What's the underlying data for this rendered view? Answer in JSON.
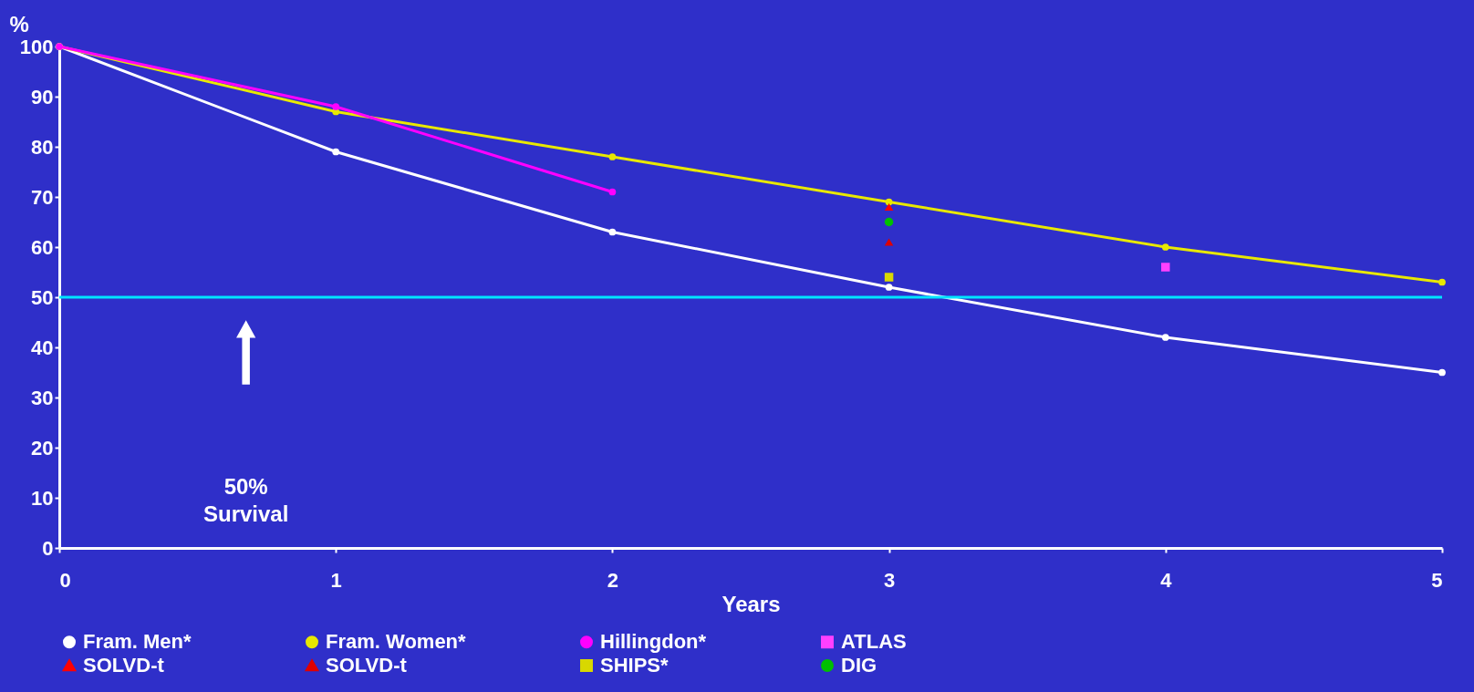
{
  "chart_data": {
    "type": "line",
    "xlabel": "Years",
    "ylabel": "%",
    "xlim": [
      0,
      5
    ],
    "xticks": [
      0,
      1,
      2,
      3,
      4,
      5
    ],
    "ylim": [
      0,
      100
    ],
    "yticks": [
      0,
      10,
      20,
      30,
      40,
      50,
      60,
      70,
      80,
      90,
      100
    ],
    "grid": false,
    "legend": "bottom",
    "line_style": "solid",
    "series": [
      {
        "name": "Fram. Men*",
        "marker": "circle",
        "color": "#ffffff",
        "x": [
          0,
          1,
          2,
          3,
          4,
          5
        ],
        "values": [
          100,
          79,
          63,
          52,
          42,
          35
        ]
      },
      {
        "name": "Fram. Women*",
        "marker": "circle",
        "color": "#e8e800",
        "x": [
          0,
          1,
          2,
          3,
          4,
          5
        ],
        "values": [
          100,
          87,
          78,
          69,
          60,
          53
        ]
      },
      {
        "name": "Hillingdon*",
        "marker": "circle",
        "color": "#ff00ff",
        "x": [
          0,
          1,
          2
        ],
        "values": [
          100,
          88,
          71
        ]
      },
      {
        "name": "ATLAS",
        "type": "scatter",
        "marker": "square",
        "color": "#ff40ff",
        "x": [
          4
        ],
        "values": [
          56
        ]
      },
      {
        "name": "SOLVD-t",
        "type": "scatter",
        "marker": "triangle",
        "color": "#ff0000",
        "x": [
          3
        ],
        "values": [
          68
        ]
      },
      {
        "name": "SOLVD-t",
        "type": "scatter",
        "marker": "triangle",
        "color": "#e00000",
        "x": [
          3
        ],
        "values": [
          61
        ]
      },
      {
        "name": "SHIPS*",
        "type": "scatter",
        "marker": "square",
        "color": "#d8d800",
        "x": [
          3
        ],
        "values": [
          54
        ]
      },
      {
        "name": "DIG",
        "type": "scatter",
        "marker": "circle",
        "color": "#00c000",
        "x": [
          3
        ],
        "values": [
          65
        ]
      }
    ],
    "ref_lines": [
      {
        "axis": "y",
        "value": 50,
        "color": "#00e5ff"
      }
    ],
    "annotations": [
      "50% Survival"
    ]
  }
}
